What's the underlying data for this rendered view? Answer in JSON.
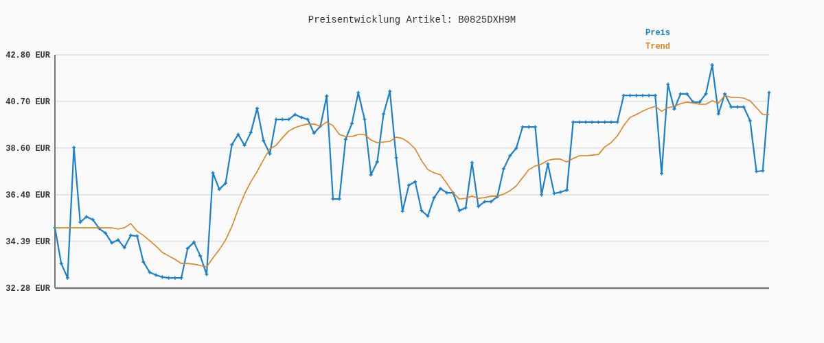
{
  "chart_data": {
    "type": "line",
    "title": "Preisentwicklung Artikel: B0825DXH9M",
    "categories": [
      null,
      null,
      null,
      null,
      null,
      null,
      null,
      null,
      null,
      null,
      null,
      null,
      null,
      null,
      null,
      null,
      null,
      null,
      null,
      null,
      null,
      null,
      null,
      null,
      null,
      null,
      null,
      null,
      null,
      null,
      null,
      null,
      null,
      null,
      null,
      null,
      null,
      null,
      null,
      null,
      null,
      null,
      null,
      null,
      null,
      null,
      null,
      null,
      null,
      null,
      null,
      null,
      null,
      null,
      null,
      null,
      null,
      null,
      null,
      null,
      null,
      null,
      null,
      null,
      null,
      null,
      null,
      null,
      null,
      null,
      null,
      null,
      null,
      null,
      null,
      null,
      null,
      null,
      null,
      null,
      null,
      null,
      null,
      null,
      null,
      null,
      null,
      null,
      null,
      null,
      null,
      null,
      null,
      null,
      null,
      null,
      null,
      null,
      null,
      null,
      null,
      null,
      null,
      null,
      null,
      null,
      null,
      null,
      null,
      null,
      null,
      null,
      null,
      null
    ],
    "series": [
      {
        "name": "Preis",
        "color": "#1a80cc",
        "marker": "cross",
        "values": [
          35.0,
          33.39,
          32.74,
          38.62,
          35.25,
          35.5,
          35.37,
          34.97,
          34.76,
          34.32,
          34.45,
          34.11,
          34.66,
          34.63,
          33.46,
          32.99,
          32.87,
          32.78,
          32.74,
          32.74,
          32.74,
          34.07,
          34.35,
          33.73,
          32.9,
          37.48,
          36.74,
          37.01,
          38.75,
          39.21,
          38.72,
          39.3,
          40.39,
          38.93,
          38.34,
          39.89,
          39.89,
          39.89,
          40.11,
          39.98,
          39.89,
          39.27,
          39.58,
          40.94,
          36.3,
          36.3,
          38.99,
          39.71,
          41.1,
          39.89,
          37.39,
          37.97,
          40.14,
          41.16,
          38.16,
          35.75,
          36.92,
          37.08,
          35.78,
          35.53,
          36.36,
          36.77,
          36.58,
          36.58,
          35.78,
          35.9,
          37.94,
          35.96,
          36.18,
          36.18,
          36.4,
          37.66,
          38.25,
          38.59,
          39.55,
          39.55,
          39.55,
          36.49,
          37.88,
          36.55,
          36.61,
          36.7,
          39.77,
          39.77,
          39.77,
          39.77,
          39.77,
          39.77,
          39.77,
          39.77,
          40.97,
          40.97,
          40.97,
          40.97,
          40.97,
          40.97,
          37.45,
          41.47,
          40.36,
          41.04,
          41.04,
          40.67,
          40.67,
          41.04,
          42.34,
          40.14,
          41.04,
          40.45,
          40.45,
          40.45,
          39.83,
          37.54,
          37.57,
          41.1
        ]
      },
      {
        "name": "Trend",
        "color": "#e0821e",
        "marker": "none",
        "values": [
          35.0,
          35.0,
          35.0,
          35.0,
          35.0,
          35.0,
          35.0,
          35.0,
          35.0,
          35.0,
          34.94,
          35.0,
          35.19,
          34.85,
          34.66,
          34.42,
          34.17,
          33.89,
          33.73,
          33.58,
          33.39,
          33.39,
          33.36,
          33.3,
          33.24,
          33.64,
          34.01,
          34.45,
          35.06,
          35.84,
          36.52,
          37.08,
          37.54,
          38.07,
          38.56,
          38.72,
          39.06,
          39.37,
          39.52,
          39.61,
          39.68,
          39.68,
          39.58,
          39.77,
          39.61,
          39.21,
          39.12,
          39.12,
          39.21,
          39.21,
          38.96,
          38.84,
          38.87,
          38.9,
          39.09,
          39.03,
          38.84,
          38.56,
          38.04,
          37.63,
          37.48,
          37.39,
          37.01,
          36.58,
          36.3,
          36.33,
          36.43,
          36.33,
          36.36,
          36.43,
          36.43,
          36.52,
          36.67,
          36.89,
          37.26,
          37.63,
          37.79,
          37.88,
          38.04,
          38.1,
          38.1,
          37.97,
          38.13,
          38.25,
          38.25,
          38.28,
          38.31,
          38.65,
          38.84,
          39.15,
          39.61,
          39.98,
          40.11,
          40.26,
          40.39,
          40.48,
          40.26,
          40.42,
          40.48,
          40.6,
          40.67,
          40.63,
          40.57,
          40.57,
          40.73,
          40.63,
          40.97,
          40.88,
          40.88,
          40.85,
          40.73,
          40.42,
          40.11,
          40.11
        ]
      }
    ],
    "ylim": [
      32.28,
      42.8
    ],
    "yticks": [
      {
        "value": 32.28,
        "label": "32.28 EUR"
      },
      {
        "value": 34.39,
        "label": "34.39 EUR"
      },
      {
        "value": 36.49,
        "label": "36.49 EUR"
      },
      {
        "value": 38.6,
        "label": "38.60 EUR"
      },
      {
        "value": 40.7,
        "label": "40.70 EUR"
      },
      {
        "value": 42.8,
        "label": "42.80 EUR"
      }
    ],
    "grid": "y",
    "legend": "top right"
  }
}
